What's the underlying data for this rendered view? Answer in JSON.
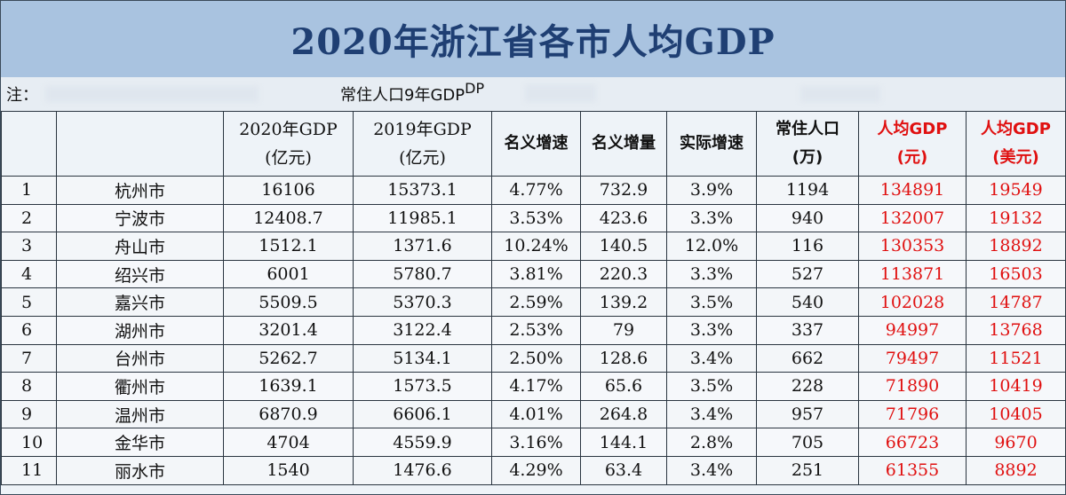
{
  "title": "2020年浙江省各市人均GDP",
  "note": "注：",
  "note_visible": "常住人口",
  "note_visible2": "9年GDP",
  "note_visible3": "DP",
  "headers": {
    "gdp2020": [
      "2020年GDP",
      "(亿元)"
    ],
    "gdp2019": [
      "2019年GDP",
      "(亿元)"
    ],
    "nominal_growth": "名义增速",
    "nominal_increase": "名义增量",
    "real_growth": "实际增速",
    "population": [
      "常住人口",
      "(万)"
    ],
    "per_capita_cny": [
      "人均GDP",
      "(元)"
    ],
    "per_capita_usd": [
      "人均GDP",
      "(美元)"
    ]
  },
  "rows": [
    {
      "rank": "1",
      "city": "杭州市",
      "gdp2020": "16106",
      "gdp2019": "15373.1",
      "nominal_growth": "4.77%",
      "nominal_increase": "732.9",
      "real_growth": "3.9%",
      "population": "1194",
      "per_capita_cny": "134891",
      "per_capita_usd": "19549"
    },
    {
      "rank": "2",
      "city": "宁波市",
      "gdp2020": "12408.7",
      "gdp2019": "11985.1",
      "nominal_growth": "3.53%",
      "nominal_increase": "423.6",
      "real_growth": "3.3%",
      "population": "940",
      "per_capita_cny": "132007",
      "per_capita_usd": "19132"
    },
    {
      "rank": "3",
      "city": "舟山市",
      "gdp2020": "1512.1",
      "gdp2019": "1371.6",
      "nominal_growth": "10.24%",
      "nominal_increase": "140.5",
      "real_growth": "12.0%",
      "population": "116",
      "per_capita_cny": "130353",
      "per_capita_usd": "18892"
    },
    {
      "rank": "4",
      "city": "绍兴市",
      "gdp2020": "6001",
      "gdp2019": "5780.7",
      "nominal_growth": "3.81%",
      "nominal_increase": "220.3",
      "real_growth": "3.3%",
      "population": "527",
      "per_capita_cny": "113871",
      "per_capita_usd": "16503"
    },
    {
      "rank": "5",
      "city": "嘉兴市",
      "gdp2020": "5509.5",
      "gdp2019": "5370.3",
      "nominal_growth": "2.59%",
      "nominal_increase": "139.2",
      "real_growth": "3.5%",
      "population": "540",
      "per_capita_cny": "102028",
      "per_capita_usd": "14787"
    },
    {
      "rank": "6",
      "city": "湖州市",
      "gdp2020": "3201.4",
      "gdp2019": "3122.4",
      "nominal_growth": "2.53%",
      "nominal_increase": "79",
      "real_growth": "3.3%",
      "population": "337",
      "per_capita_cny": "94997",
      "per_capita_usd": "13768"
    },
    {
      "rank": "7",
      "city": "台州市",
      "gdp2020": "5262.7",
      "gdp2019": "5134.1",
      "nominal_growth": "2.50%",
      "nominal_increase": "128.6",
      "real_growth": "3.4%",
      "population": "662",
      "per_capita_cny": "79497",
      "per_capita_usd": "11521"
    },
    {
      "rank": "8",
      "city": "衢州市",
      "gdp2020": "1639.1",
      "gdp2019": "1573.5",
      "nominal_growth": "4.17%",
      "nominal_increase": "65.6",
      "real_growth": "3.5%",
      "population": "228",
      "per_capita_cny": "71890",
      "per_capita_usd": "10419"
    },
    {
      "rank": "9",
      "city": "温州市",
      "gdp2020": "6870.9",
      "gdp2019": "6606.1",
      "nominal_growth": "4.01%",
      "nominal_increase": "264.8",
      "real_growth": "3.4%",
      "population": "957",
      "per_capita_cny": "71796",
      "per_capita_usd": "10405"
    },
    {
      "rank": "10",
      "city": "金华市",
      "gdp2020": "4704",
      "gdp2019": "4559.9",
      "nominal_growth": "3.16%",
      "nominal_increase": "144.1",
      "real_growth": "2.8%",
      "population": "705",
      "per_capita_cny": "66723",
      "per_capita_usd": "9670"
    },
    {
      "rank": "11",
      "city": "丽水市",
      "gdp2020": "1540",
      "gdp2019": "1476.6",
      "nominal_growth": "4.29%",
      "nominal_increase": "63.4",
      "real_growth": "3.4%",
      "population": "251",
      "per_capita_cny": "61355",
      "per_capita_usd": "8892"
    }
  ],
  "colors": {
    "title_bg": "#a9c3e0",
    "title_text": "#1f3f73",
    "highlight": "#e01010"
  }
}
